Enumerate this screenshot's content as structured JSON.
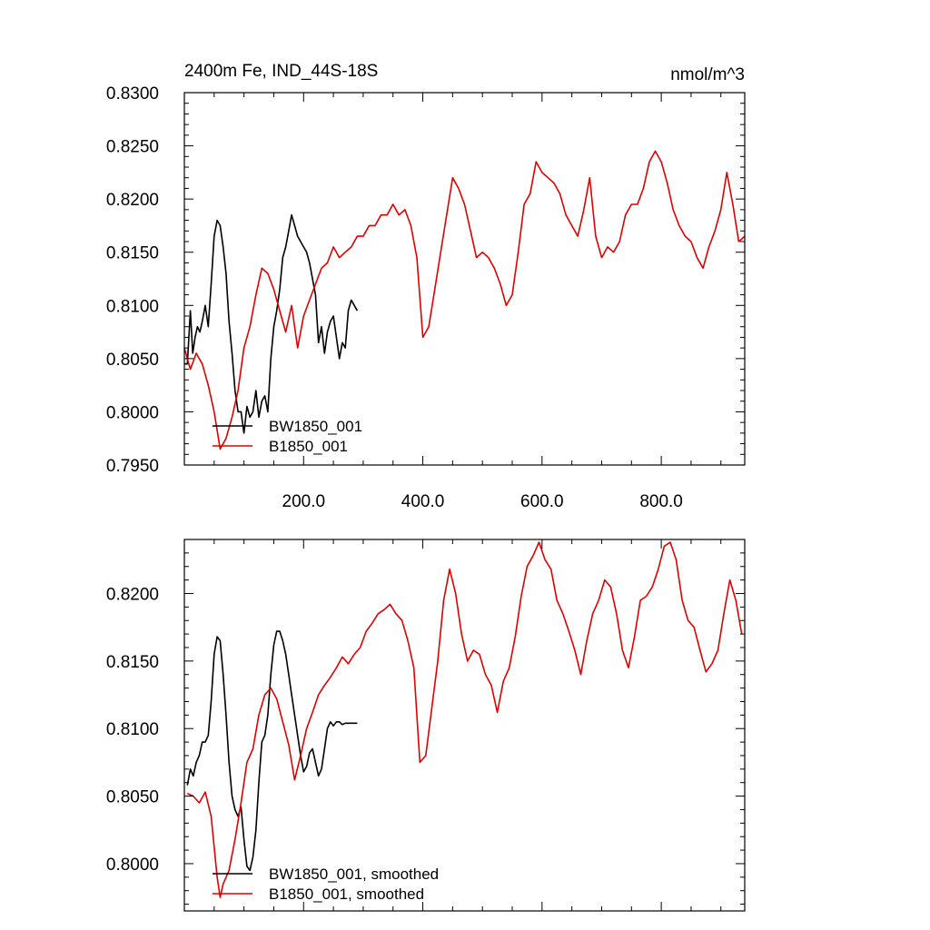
{
  "colors": {
    "BW1850_001": "#000000",
    "B1850_001": "#e00000"
  },
  "chart_data": [
    {
      "type": "line",
      "title": "2400m Fe, IND_44S-18S",
      "units": "nmol/m^3",
      "xlim": [
        0,
        940
      ],
      "ylim": [
        0.795,
        0.83
      ],
      "xticks": [
        200,
        400,
        600,
        800
      ],
      "xtick_labels": [
        "200.0",
        "400.0",
        "600.0",
        "800.0"
      ],
      "yticks": [
        0.795,
        0.8,
        0.805,
        0.81,
        0.815,
        0.82,
        0.825,
        0.83
      ],
      "ytick_labels": [
        "0.7950",
        "0.8000",
        "0.8050",
        "0.8100",
        "0.8150",
        "0.8200",
        "0.8250",
        "0.8300"
      ],
      "legend": "lower-left",
      "grid": false,
      "series": [
        {
          "name": "BW1850_001",
          "color": "#000000",
          "x": [
            0,
            5,
            10,
            14,
            18,
            22,
            26,
            30,
            35,
            40,
            45,
            50,
            55,
            60,
            65,
            70,
            75,
            80,
            85,
            90,
            95,
            100,
            105,
            110,
            115,
            120,
            125,
            130,
            135,
            140,
            145,
            150,
            155,
            160,
            165,
            170,
            175,
            180,
            185,
            190,
            195,
            200,
            205,
            210,
            215,
            220,
            225,
            230,
            235,
            240,
            245,
            250,
            255,
            260,
            265,
            270,
            275,
            280,
            285,
            290
          ],
          "y": [
            0.8045,
            0.8045,
            0.8095,
            0.8055,
            0.807,
            0.808,
            0.8075,
            0.8085,
            0.81,
            0.808,
            0.812,
            0.8165,
            0.818,
            0.8175,
            0.8155,
            0.813,
            0.8085,
            0.8055,
            0.802,
            0.8,
            0.8,
            0.798,
            0.8005,
            0.7995,
            0.8,
            0.802,
            0.7995,
            0.801,
            0.8015,
            0.8,
            0.805,
            0.808,
            0.8095,
            0.8115,
            0.8145,
            0.8155,
            0.817,
            0.8185,
            0.8175,
            0.8165,
            0.816,
            0.8155,
            0.815,
            0.814,
            0.8125,
            0.811,
            0.8065,
            0.808,
            0.8055,
            0.8075,
            0.8085,
            0.809,
            0.807,
            0.805,
            0.8065,
            0.806,
            0.8095,
            0.8105,
            0.81,
            0.8095
          ]
        },
        {
          "name": "B1850_001",
          "color": "#e00000",
          "x": [
            0,
            10,
            20,
            30,
            40,
            50,
            60,
            70,
            80,
            90,
            100,
            110,
            120,
            130,
            140,
            150,
            160,
            170,
            180,
            190,
            200,
            210,
            220,
            230,
            240,
            250,
            260,
            270,
            280,
            290,
            300,
            310,
            320,
            330,
            340,
            350,
            360,
            370,
            380,
            390,
            400,
            410,
            420,
            430,
            440,
            450,
            460,
            470,
            480,
            490,
            500,
            510,
            520,
            530,
            540,
            550,
            560,
            570,
            580,
            590,
            600,
            610,
            620,
            630,
            640,
            650,
            660,
            670,
            680,
            690,
            700,
            710,
            720,
            730,
            740,
            750,
            760,
            770,
            780,
            790,
            800,
            810,
            820,
            830,
            840,
            850,
            860,
            870,
            880,
            890,
            900,
            910,
            920,
            930,
            940
          ],
          "y": [
            0.806,
            0.804,
            0.8055,
            0.8045,
            0.8025,
            0.8,
            0.7965,
            0.7975,
            0.7995,
            0.802,
            0.806,
            0.808,
            0.811,
            0.8135,
            0.813,
            0.8115,
            0.8095,
            0.8075,
            0.81,
            0.806,
            0.809,
            0.8105,
            0.812,
            0.8135,
            0.814,
            0.8155,
            0.8145,
            0.815,
            0.8155,
            0.8165,
            0.8165,
            0.8175,
            0.8175,
            0.8185,
            0.8185,
            0.8195,
            0.8185,
            0.819,
            0.8175,
            0.8145,
            0.807,
            0.808,
            0.8115,
            0.815,
            0.8185,
            0.822,
            0.821,
            0.8195,
            0.817,
            0.8145,
            0.815,
            0.8145,
            0.8135,
            0.812,
            0.81,
            0.811,
            0.815,
            0.8195,
            0.8205,
            0.8235,
            0.8225,
            0.822,
            0.8215,
            0.8205,
            0.8185,
            0.8175,
            0.8165,
            0.819,
            0.822,
            0.8165,
            0.8145,
            0.8155,
            0.815,
            0.816,
            0.8185,
            0.8195,
            0.8195,
            0.821,
            0.8235,
            0.8245,
            0.8235,
            0.8215,
            0.819,
            0.8175,
            0.8165,
            0.816,
            0.8145,
            0.8135,
            0.8155,
            0.817,
            0.819,
            0.8225,
            0.8195,
            0.816,
            0.8165
          ]
        }
      ],
      "legend_entries": [
        "BW1850_001",
        "B1850_001"
      ]
    },
    {
      "type": "line",
      "title": "",
      "xlim": [
        0,
        940
      ],
      "ylim": [
        0.7965,
        0.824
      ],
      "xticks": [
        200,
        400,
        600,
        800
      ],
      "xtick_labels": [],
      "yticks": [
        0.8,
        0.805,
        0.81,
        0.815,
        0.82
      ],
      "ytick_labels": [
        "0.8000",
        "0.8050",
        "0.8100",
        "0.8150",
        "0.8200"
      ],
      "legend": "lower-left",
      "grid": false,
      "series": [
        {
          "name": "BW1850_001, smoothed",
          "color": "#000000",
          "x": [
            5,
            10,
            15,
            20,
            25,
            30,
            35,
            40,
            45,
            50,
            55,
            60,
            65,
            70,
            75,
            80,
            85,
            90,
            95,
            100,
            105,
            110,
            115,
            120,
            125,
            130,
            135,
            140,
            145,
            150,
            155,
            160,
            165,
            170,
            175,
            180,
            185,
            190,
            195,
            200,
            205,
            210,
            215,
            220,
            225,
            230,
            235,
            240,
            245,
            250,
            255,
            260,
            265,
            270,
            275,
            280,
            285,
            290
          ],
          "y": [
            0.8058,
            0.807,
            0.8065,
            0.8075,
            0.808,
            0.809,
            0.809,
            0.8095,
            0.812,
            0.8155,
            0.8168,
            0.8165,
            0.814,
            0.811,
            0.8075,
            0.805,
            0.804,
            0.8035,
            0.8042,
            0.8018,
            0.7998,
            0.7995,
            0.8005,
            0.8025,
            0.806,
            0.809,
            0.8095,
            0.811,
            0.814,
            0.8162,
            0.8172,
            0.8172,
            0.8165,
            0.8155,
            0.814,
            0.8125,
            0.811,
            0.8095,
            0.808,
            0.8068,
            0.8072,
            0.8082,
            0.8085,
            0.8075,
            0.8065,
            0.807,
            0.8085,
            0.81,
            0.8105,
            0.8102,
            0.8105,
            0.8105,
            0.8103,
            0.8104,
            0.8104,
            0.8104,
            0.8104,
            0.8104
          ]
        },
        {
          "name": "B1850_001, smoothed",
          "color": "#e00000",
          "x": [
            5,
            15,
            25,
            35,
            45,
            55,
            60,
            65,
            75,
            85,
            95,
            105,
            115,
            125,
            135,
            145,
            155,
            165,
            175,
            185,
            195,
            205,
            215,
            225,
            235,
            245,
            255,
            265,
            275,
            285,
            295,
            305,
            315,
            325,
            335,
            345,
            355,
            365,
            375,
            385,
            395,
            405,
            415,
            425,
            435,
            445,
            455,
            465,
            475,
            485,
            495,
            505,
            515,
            525,
            535,
            545,
            555,
            565,
            575,
            585,
            595,
            605,
            615,
            625,
            635,
            645,
            655,
            665,
            675,
            685,
            695,
            705,
            715,
            725,
            735,
            745,
            755,
            765,
            775,
            785,
            795,
            805,
            815,
            825,
            835,
            845,
            855,
            865,
            875,
            885,
            895,
            905,
            915,
            925,
            935
          ],
          "y": [
            0.8052,
            0.805,
            0.8045,
            0.8053,
            0.8035,
            0.799,
            0.7975,
            0.7985,
            0.7995,
            0.8018,
            0.8045,
            0.8075,
            0.8085,
            0.811,
            0.8125,
            0.813,
            0.8122,
            0.8105,
            0.8088,
            0.8062,
            0.808,
            0.81,
            0.8112,
            0.8125,
            0.8132,
            0.8138,
            0.8145,
            0.8153,
            0.8148,
            0.8155,
            0.816,
            0.8172,
            0.8178,
            0.8185,
            0.8188,
            0.8192,
            0.8185,
            0.818,
            0.8165,
            0.8145,
            0.8075,
            0.808,
            0.8115,
            0.815,
            0.8195,
            0.8218,
            0.82,
            0.817,
            0.815,
            0.8158,
            0.8155,
            0.814,
            0.8132,
            0.8112,
            0.8135,
            0.8145,
            0.8168,
            0.8198,
            0.822,
            0.8228,
            0.8238,
            0.8225,
            0.8218,
            0.8195,
            0.8185,
            0.8172,
            0.8158,
            0.814,
            0.8165,
            0.8185,
            0.8195,
            0.821,
            0.8205,
            0.8185,
            0.8158,
            0.8145,
            0.8168,
            0.8195,
            0.8198,
            0.8205,
            0.8218,
            0.8235,
            0.8238,
            0.8225,
            0.8195,
            0.818,
            0.8175,
            0.8158,
            0.8142,
            0.8148,
            0.8158,
            0.8185,
            0.821,
            0.8195,
            0.817
          ]
        }
      ],
      "legend_entries": [
        "BW1850_001, smoothed",
        "B1850_001, smoothed"
      ]
    }
  ]
}
